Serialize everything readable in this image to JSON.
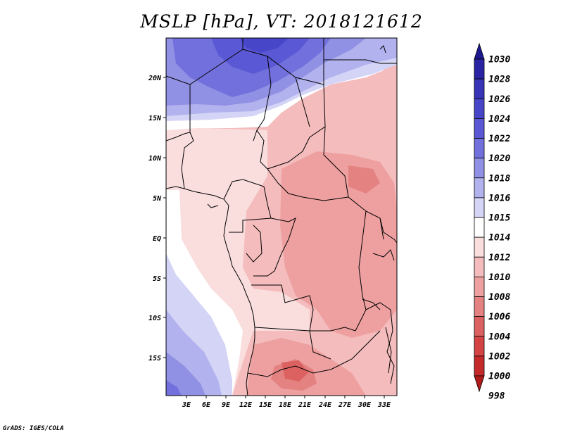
{
  "title": "MSLP [hPa], VT: 2018121612",
  "credit": "GrADS: IGES/COLA",
  "lat_labels": [
    "20N",
    "15N",
    "10N",
    "5N",
    "EQ",
    "5S",
    "10S",
    "15S"
  ],
  "lon_labels": [
    "3E",
    "6E",
    "9E",
    "12E",
    "15E",
    "18E",
    "21E",
    "24E",
    "27E",
    "30E",
    "33E"
  ],
  "colorbar": {
    "levels": [
      "1030",
      "1028",
      "1026",
      "1024",
      "1022",
      "1020",
      "1018",
      "1016",
      "1015",
      "1014",
      "1012",
      "1010",
      "1008",
      "1006",
      "1004",
      "1002",
      "1000",
      "998"
    ],
    "colors": [
      "#1e1890",
      "#2a24a4",
      "#3834b8",
      "#4846c8",
      "#5a58d4",
      "#7270dc",
      "#9090e4",
      "#b2b2ee",
      "#d4d4f6",
      "#ffffff",
      "#fadede",
      "#f4bcbc",
      "#eea0a0",
      "#e48282",
      "#dc6262",
      "#d44444",
      "#c42a2a",
      "#b01a1a"
    ]
  }
}
